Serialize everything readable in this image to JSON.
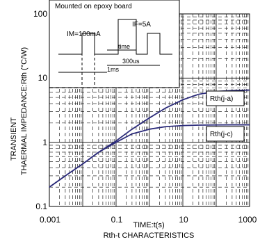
{
  "chart_data": {
    "type": "line",
    "title": "Rth-t CHARACTERISTICS",
    "xlabel": "TIME:t(s)",
    "ylabel": [
      "TRANSIENT",
      "THAERMAL IMPEDANCE:Rth (°C/W)"
    ],
    "x_scale": "log",
    "y_scale": "log",
    "xlim": [
      0.001,
      1000
    ],
    "ylim": [
      0.1,
      100
    ],
    "x_ticks": [
      "0.001",
      "0.1",
      "10",
      "1000"
    ],
    "y_ticks": [
      "100",
      "10",
      "1",
      "0.1"
    ],
    "grid": true,
    "series": [
      {
        "name": "Rth(j-a)",
        "color": "#2b2b7a",
        "x": [
          0.001,
          0.003,
          0.01,
          0.03,
          0.1,
          0.3,
          1,
          3,
          10,
          30,
          100,
          300,
          1000
        ],
        "y": [
          0.2,
          0.3,
          0.46,
          0.7,
          1.05,
          1.6,
          2.4,
          3.4,
          4.6,
          5.6,
          6.2,
          6.4,
          6.5
        ]
      },
      {
        "name": "Rth(j-c)",
        "color": "#2b2b7a",
        "x": [
          0.001,
          0.003,
          0.01,
          0.03,
          0.1,
          0.3,
          1,
          3,
          10,
          30,
          100,
          300,
          1000
        ],
        "y": [
          0.2,
          0.3,
          0.46,
          0.7,
          1.0,
          1.35,
          1.6,
          1.75,
          1.82,
          1.85,
          1.86,
          1.87,
          1.87
        ]
      }
    ]
  },
  "inset": {
    "title": "Mounted on epoxy board",
    "im_label": "IM=100mA",
    "if_label": "IF=5A",
    "time_label": "time",
    "us_label": "300us",
    "ms_label": "1ms"
  }
}
